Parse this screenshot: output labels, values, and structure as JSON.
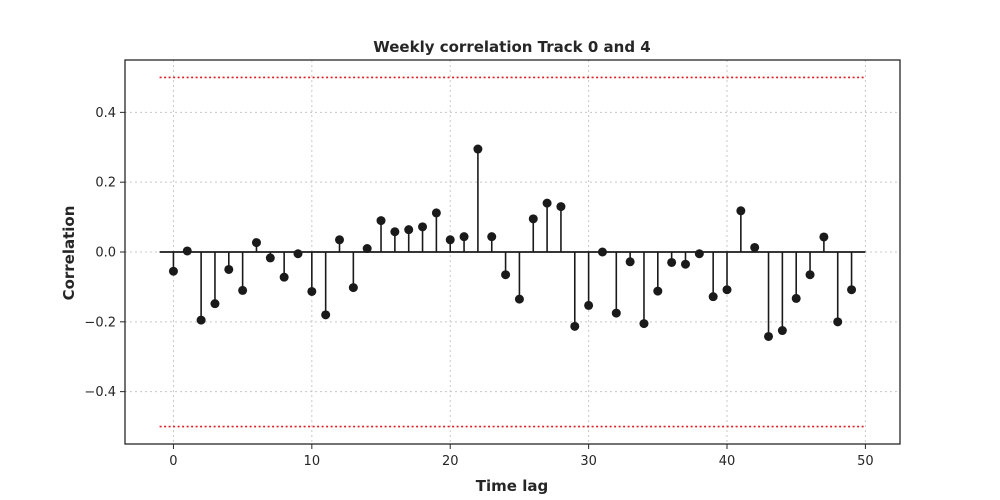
{
  "chart_data": {
    "type": "stem",
    "title": "Weekly correlation Track 0 and 4",
    "xlabel": "Time lag",
    "ylabel": "Correlation",
    "xlim": [
      -3.5,
      52.5
    ],
    "ylim": [
      -0.55,
      0.55
    ],
    "xticks": [
      0,
      10,
      20,
      30,
      40,
      50
    ],
    "xtick_labels": [
      "0",
      "10",
      "20",
      "30",
      "40",
      "50"
    ],
    "yticks": [
      -0.4,
      -0.2,
      0.0,
      0.2,
      0.4
    ],
    "ytick_labels": [
      "−0.4",
      "−0.2",
      "0.0",
      "0.2",
      "0.4"
    ],
    "grid": true,
    "baseline": {
      "y": 0,
      "x_range": [
        -1,
        50
      ]
    },
    "reference_lines": [
      {
        "y": 0.5,
        "x_range": [
          -1,
          50
        ],
        "style": "dotted",
        "color": "#e41a1c"
      },
      {
        "y": -0.5,
        "x_range": [
          -1,
          50
        ],
        "style": "dotted",
        "color": "#e41a1c"
      }
    ],
    "x": [
      0,
      1,
      2,
      3,
      4,
      5,
      6,
      7,
      8,
      9,
      10,
      11,
      12,
      13,
      14,
      15,
      16,
      17,
      18,
      19,
      20,
      21,
      22,
      23,
      24,
      25,
      26,
      27,
      28,
      29,
      30,
      31,
      32,
      33,
      34,
      35,
      36,
      37,
      38,
      39,
      40,
      41,
      42,
      43,
      44,
      45,
      46,
      47,
      48,
      49
    ],
    "values": [
      -0.055,
      0.003,
      -0.195,
      -0.148,
      -0.05,
      -0.11,
      0.027,
      -0.017,
      -0.072,
      -0.005,
      -0.113,
      -0.18,
      0.035,
      -0.102,
      0.01,
      0.09,
      0.058,
      0.064,
      0.072,
      0.112,
      0.035,
      0.044,
      0.295,
      0.044,
      -0.065,
      -0.135,
      0.095,
      0.14,
      0.13,
      -0.213,
      -0.153,
      0.0,
      -0.175,
      -0.028,
      -0.205,
      -0.112,
      -0.03,
      -0.035,
      -0.005,
      -0.128,
      -0.108,
      0.118,
      0.013,
      -0.242,
      -0.225,
      -0.133,
      -0.065,
      0.043,
      -0.2,
      -0.108
    ],
    "colors": {
      "stem": "#1a1a1a",
      "marker": "#1a1a1a",
      "grid": "#c8c8c8",
      "reference": "#e41a1c",
      "axes": "#262626"
    }
  }
}
